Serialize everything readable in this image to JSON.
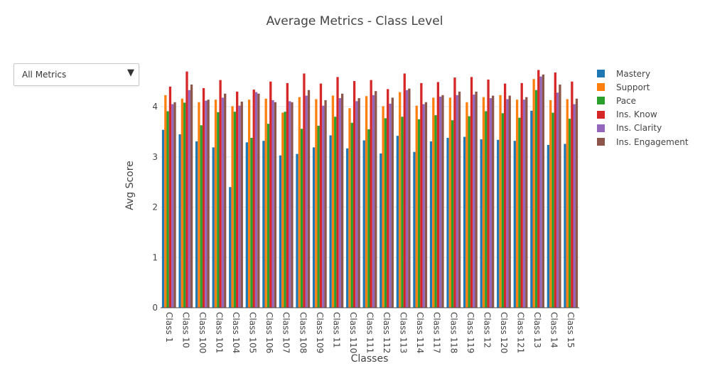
{
  "chart_data": {
    "type": "bar",
    "title": "Average Metrics - Class Level",
    "xlabel": "Classes",
    "ylabel": "Avg Score",
    "ylim": [
      0,
      4.85
    ],
    "yticks": [
      0,
      1,
      2,
      3,
      4
    ],
    "grid": true,
    "legend_position": "top-right",
    "categories": [
      "Class 1",
      "Class 10",
      "Class 100",
      "Class 101",
      "Class 104",
      "Class 105",
      "Class 106",
      "Class 107",
      "Class 108",
      "Class 109",
      "Class 11",
      "Class 110",
      "Class 111",
      "Class 112",
      "Class 113",
      "Class 114",
      "Class 117",
      "Class 118",
      "Class 119",
      "Class 12",
      "Class 120",
      "Class 121",
      "Class 13",
      "Class 14",
      "Class 15"
    ],
    "series": [
      {
        "name": "Mastery",
        "color": "#1f77b4",
        "values": [
          3.54,
          3.45,
          3.31,
          3.19,
          2.4,
          3.29,
          3.32,
          3.03,
          3.06,
          3.19,
          3.43,
          3.17,
          3.33,
          3.07,
          3.42,
          3.1,
          3.31,
          3.38,
          3.4,
          3.35,
          3.34,
          3.32,
          3.92,
          3.24,
          3.26
        ]
      },
      {
        "name": "Support",
        "color": "#ff7f0e",
        "values": [
          4.23,
          4.16,
          4.09,
          4.14,
          4.01,
          4.14,
          4.16,
          3.88,
          4.19,
          4.15,
          4.22,
          3.97,
          4.21,
          4.01,
          4.29,
          4.02,
          4.18,
          4.18,
          4.09,
          4.19,
          4.23,
          4.14,
          4.55,
          4.13,
          4.15
        ]
      },
      {
        "name": "Pace",
        "color": "#2ca02c",
        "values": [
          3.91,
          4.08,
          3.63,
          3.89,
          3.9,
          3.38,
          3.66,
          3.9,
          3.56,
          3.62,
          3.8,
          3.68,
          3.55,
          3.77,
          3.8,
          3.75,
          3.83,
          3.73,
          3.81,
          3.91,
          3.87,
          3.78,
          4.33,
          3.88,
          3.76
        ]
      },
      {
        "name": "Ins. Know",
        "color": "#d62728",
        "values": [
          4.4,
          4.7,
          4.37,
          4.53,
          4.3,
          4.34,
          4.5,
          4.47,
          4.66,
          4.46,
          4.59,
          4.51,
          4.53,
          4.35,
          4.66,
          4.47,
          4.49,
          4.58,
          4.59,
          4.54,
          4.46,
          4.47,
          4.73,
          4.68,
          4.5
        ]
      },
      {
        "name": "Ins. Clarity",
        "color": "#9467bd",
        "values": [
          4.05,
          4.33,
          4.12,
          4.18,
          4.02,
          4.29,
          4.13,
          4.11,
          4.22,
          4.02,
          4.17,
          4.11,
          4.23,
          4.06,
          4.33,
          4.05,
          4.2,
          4.23,
          4.24,
          4.17,
          4.15,
          4.14,
          4.6,
          4.28,
          4.05
        ]
      },
      {
        "name": "Ins. Engagement",
        "color": "#8c564b",
        "values": [
          4.09,
          4.44,
          4.14,
          4.26,
          4.1,
          4.26,
          4.09,
          4.09,
          4.33,
          4.13,
          4.26,
          4.17,
          4.31,
          4.18,
          4.36,
          4.09,
          4.23,
          4.3,
          4.3,
          4.22,
          4.22,
          4.19,
          4.64,
          4.44,
          4.16
        ]
      }
    ]
  },
  "controls": {
    "dropdown_label": "All Metrics",
    "dropdown_arrow": "▼"
  }
}
